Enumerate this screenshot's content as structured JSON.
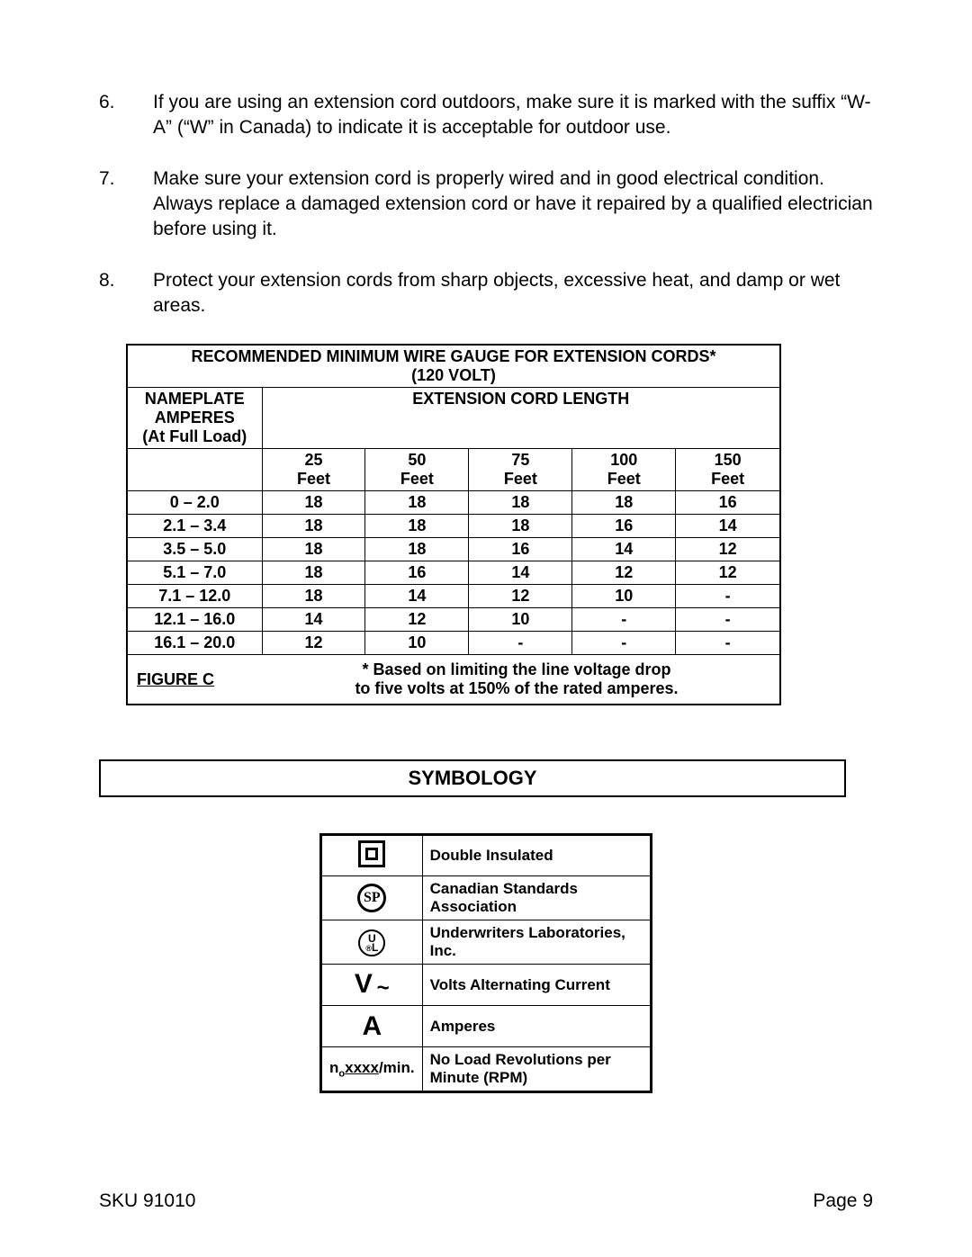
{
  "list": {
    "items": [
      {
        "num": "6.",
        "text": "If you are using an extension cord outdoors, make sure it is marked with the suffix “W-A” (“W” in Canada) to indicate it is acceptable for outdoor use."
      },
      {
        "num": "7.",
        "text": "Make sure your extension cord is properly wired and in good electrical condition. Always replace a damaged extension cord or have it repaired by a qualified electrician before using it."
      },
      {
        "num": "8.",
        "text": "Protect your extension cords from sharp objects, excessive heat, and damp or wet areas."
      }
    ]
  },
  "gauge": {
    "title_l1": "RECOMMENDED MINIMUM WIRE GAUGE FOR EXTENSION CORDS*",
    "title_l2": "(120 VOLT)",
    "amp_h1": "NAMEPLATE",
    "amp_h2": "AMPERES",
    "amp_h3": "(At Full Load)",
    "len_header": "EXTENSION CORD LENGTH",
    "feet_label": "Feet",
    "lengths": [
      "25",
      "50",
      "75",
      "100",
      "150"
    ],
    "rows": [
      {
        "amp": "0 – 2.0",
        "v": [
          "18",
          "18",
          "18",
          "18",
          "16"
        ]
      },
      {
        "amp": "2.1 – 3.4",
        "v": [
          "18",
          "18",
          "18",
          "16",
          "14"
        ]
      },
      {
        "amp": "3.5 – 5.0",
        "v": [
          "18",
          "18",
          "16",
          "14",
          "12"
        ]
      },
      {
        "amp": "5.1 – 7.0",
        "v": [
          "18",
          "16",
          "14",
          "12",
          "12"
        ]
      },
      {
        "amp": "7.1 – 12.0",
        "v": [
          "18",
          "14",
          "12",
          "10",
          "-"
        ]
      },
      {
        "amp": "12.1 – 16.0",
        "v": [
          "14",
          "12",
          "10",
          "-",
          "-"
        ]
      },
      {
        "amp": "16.1 – 20.0",
        "v": [
          "12",
          "10",
          "-",
          "-",
          "-"
        ]
      }
    ],
    "figure_label": "FIGURE C",
    "note_l1": "* Based on limiting the line voltage drop",
    "note_l2": "to five volts at 150% of the rated amperes."
  },
  "symbology": {
    "heading": "SYMBOLOGY",
    "rows": [
      {
        "key": "di",
        "label": "Double Insulated"
      },
      {
        "key": "csa",
        "label": "Canadian Standards Association"
      },
      {
        "key": "ul",
        "label": "Underwriters Laboratories, Inc."
      },
      {
        "key": "vac",
        "label": "Volts Alternating Current"
      },
      {
        "key": "amp",
        "label": "Amperes"
      },
      {
        "key": "rpm",
        "label": "No Load Revolutions per Minute (RPM)"
      }
    ],
    "csa_text": "SP",
    "ul_text": "UL",
    "vac_text": "V",
    "amp_text": "A",
    "rpm_prefix": "n",
    "rpm_sub": "o",
    "rpm_x": "xxxx",
    "rpm_suffix": "/min."
  },
  "footer": {
    "sku_label": "SKU",
    "sku_value": "91010",
    "page_label": "Page",
    "page_value": "9"
  }
}
